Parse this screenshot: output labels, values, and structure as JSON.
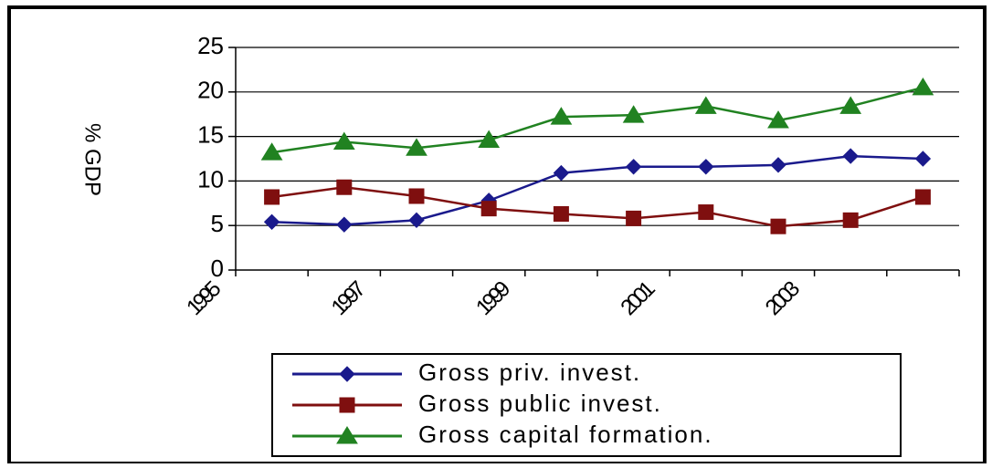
{
  "chart_data": {
    "type": "line",
    "y_label": "% GDP",
    "categories": [
      "1995",
      null,
      "1997",
      null,
      "1999",
      null,
      "2001",
      null,
      "2003",
      null
    ],
    "series": [
      {
        "name": "Gross priv. invest.",
        "color": "#1a1a8c",
        "marker": "diamond",
        "values": [
          5.4,
          5.1,
          5.6,
          7.8,
          10.9,
          11.6,
          11.6,
          11.8,
          12.8,
          12.5
        ]
      },
      {
        "name": "Gross public invest.",
        "color": "#7f0f0f",
        "marker": "square",
        "values": [
          8.2,
          9.3,
          8.3,
          6.9,
          6.3,
          5.8,
          6.5,
          4.9,
          5.6,
          8.2
        ]
      },
      {
        "name": "Gross capital formation.",
        "color": "#218221",
        "marker": "triangle",
        "values": [
          13.2,
          14.4,
          13.7,
          14.6,
          17.2,
          17.4,
          18.4,
          16.8,
          18.4,
          20.5
        ]
      }
    ],
    "ylim": [
      0,
      25
    ],
    "yticks": [
      0,
      5,
      10,
      15,
      20,
      25
    ],
    "grid": true
  }
}
